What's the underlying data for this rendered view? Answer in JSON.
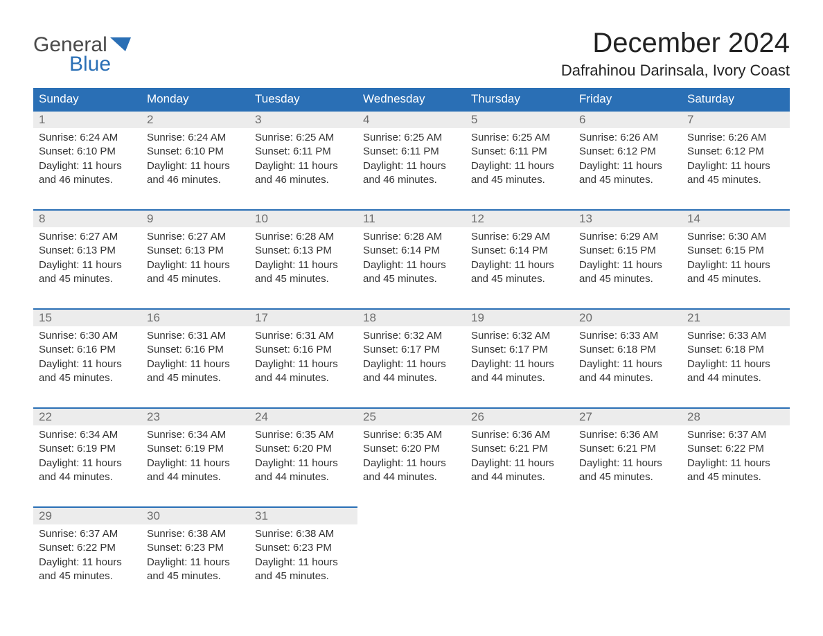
{
  "logo": {
    "word1": "General",
    "word2": "Blue"
  },
  "title": "December 2024",
  "location": "Dafrahinou Darinsala, Ivory Coast",
  "colors": {
    "header_bg": "#2a6fb5",
    "header_text": "#ffffff",
    "daynum_bg": "#ececec",
    "daynum_text": "#6b6b6b",
    "body_text": "#333333",
    "rule": "#2a6fb5",
    "logo_blue": "#2a6fb5",
    "logo_gray": "#4a4a4a",
    "page_bg": "#ffffff"
  },
  "days_of_week": [
    "Sunday",
    "Monday",
    "Tuesday",
    "Wednesday",
    "Thursday",
    "Friday",
    "Saturday"
  ],
  "weeks": [
    [
      {
        "n": "1",
        "sunrise": "Sunrise: 6:24 AM",
        "sunset": "Sunset: 6:10 PM",
        "day1": "Daylight: 11 hours",
        "day2": "and 46 minutes."
      },
      {
        "n": "2",
        "sunrise": "Sunrise: 6:24 AM",
        "sunset": "Sunset: 6:10 PM",
        "day1": "Daylight: 11 hours",
        "day2": "and 46 minutes."
      },
      {
        "n": "3",
        "sunrise": "Sunrise: 6:25 AM",
        "sunset": "Sunset: 6:11 PM",
        "day1": "Daylight: 11 hours",
        "day2": "and 46 minutes."
      },
      {
        "n": "4",
        "sunrise": "Sunrise: 6:25 AM",
        "sunset": "Sunset: 6:11 PM",
        "day1": "Daylight: 11 hours",
        "day2": "and 46 minutes."
      },
      {
        "n": "5",
        "sunrise": "Sunrise: 6:25 AM",
        "sunset": "Sunset: 6:11 PM",
        "day1": "Daylight: 11 hours",
        "day2": "and 45 minutes."
      },
      {
        "n": "6",
        "sunrise": "Sunrise: 6:26 AM",
        "sunset": "Sunset: 6:12 PM",
        "day1": "Daylight: 11 hours",
        "day2": "and 45 minutes."
      },
      {
        "n": "7",
        "sunrise": "Sunrise: 6:26 AM",
        "sunset": "Sunset: 6:12 PM",
        "day1": "Daylight: 11 hours",
        "day2": "and 45 minutes."
      }
    ],
    [
      {
        "n": "8",
        "sunrise": "Sunrise: 6:27 AM",
        "sunset": "Sunset: 6:13 PM",
        "day1": "Daylight: 11 hours",
        "day2": "and 45 minutes."
      },
      {
        "n": "9",
        "sunrise": "Sunrise: 6:27 AM",
        "sunset": "Sunset: 6:13 PM",
        "day1": "Daylight: 11 hours",
        "day2": "and 45 minutes."
      },
      {
        "n": "10",
        "sunrise": "Sunrise: 6:28 AM",
        "sunset": "Sunset: 6:13 PM",
        "day1": "Daylight: 11 hours",
        "day2": "and 45 minutes."
      },
      {
        "n": "11",
        "sunrise": "Sunrise: 6:28 AM",
        "sunset": "Sunset: 6:14 PM",
        "day1": "Daylight: 11 hours",
        "day2": "and 45 minutes."
      },
      {
        "n": "12",
        "sunrise": "Sunrise: 6:29 AM",
        "sunset": "Sunset: 6:14 PM",
        "day1": "Daylight: 11 hours",
        "day2": "and 45 minutes."
      },
      {
        "n": "13",
        "sunrise": "Sunrise: 6:29 AM",
        "sunset": "Sunset: 6:15 PM",
        "day1": "Daylight: 11 hours",
        "day2": "and 45 minutes."
      },
      {
        "n": "14",
        "sunrise": "Sunrise: 6:30 AM",
        "sunset": "Sunset: 6:15 PM",
        "day1": "Daylight: 11 hours",
        "day2": "and 45 minutes."
      }
    ],
    [
      {
        "n": "15",
        "sunrise": "Sunrise: 6:30 AM",
        "sunset": "Sunset: 6:16 PM",
        "day1": "Daylight: 11 hours",
        "day2": "and 45 minutes."
      },
      {
        "n": "16",
        "sunrise": "Sunrise: 6:31 AM",
        "sunset": "Sunset: 6:16 PM",
        "day1": "Daylight: 11 hours",
        "day2": "and 45 minutes."
      },
      {
        "n": "17",
        "sunrise": "Sunrise: 6:31 AM",
        "sunset": "Sunset: 6:16 PM",
        "day1": "Daylight: 11 hours",
        "day2": "and 44 minutes."
      },
      {
        "n": "18",
        "sunrise": "Sunrise: 6:32 AM",
        "sunset": "Sunset: 6:17 PM",
        "day1": "Daylight: 11 hours",
        "day2": "and 44 minutes."
      },
      {
        "n": "19",
        "sunrise": "Sunrise: 6:32 AM",
        "sunset": "Sunset: 6:17 PM",
        "day1": "Daylight: 11 hours",
        "day2": "and 44 minutes."
      },
      {
        "n": "20",
        "sunrise": "Sunrise: 6:33 AM",
        "sunset": "Sunset: 6:18 PM",
        "day1": "Daylight: 11 hours",
        "day2": "and 44 minutes."
      },
      {
        "n": "21",
        "sunrise": "Sunrise: 6:33 AM",
        "sunset": "Sunset: 6:18 PM",
        "day1": "Daylight: 11 hours",
        "day2": "and 44 minutes."
      }
    ],
    [
      {
        "n": "22",
        "sunrise": "Sunrise: 6:34 AM",
        "sunset": "Sunset: 6:19 PM",
        "day1": "Daylight: 11 hours",
        "day2": "and 44 minutes."
      },
      {
        "n": "23",
        "sunrise": "Sunrise: 6:34 AM",
        "sunset": "Sunset: 6:19 PM",
        "day1": "Daylight: 11 hours",
        "day2": "and 44 minutes."
      },
      {
        "n": "24",
        "sunrise": "Sunrise: 6:35 AM",
        "sunset": "Sunset: 6:20 PM",
        "day1": "Daylight: 11 hours",
        "day2": "and 44 minutes."
      },
      {
        "n": "25",
        "sunrise": "Sunrise: 6:35 AM",
        "sunset": "Sunset: 6:20 PM",
        "day1": "Daylight: 11 hours",
        "day2": "and 44 minutes."
      },
      {
        "n": "26",
        "sunrise": "Sunrise: 6:36 AM",
        "sunset": "Sunset: 6:21 PM",
        "day1": "Daylight: 11 hours",
        "day2": "and 44 minutes."
      },
      {
        "n": "27",
        "sunrise": "Sunrise: 6:36 AM",
        "sunset": "Sunset: 6:21 PM",
        "day1": "Daylight: 11 hours",
        "day2": "and 45 minutes."
      },
      {
        "n": "28",
        "sunrise": "Sunrise: 6:37 AM",
        "sunset": "Sunset: 6:22 PM",
        "day1": "Daylight: 11 hours",
        "day2": "and 45 minutes."
      }
    ],
    [
      {
        "n": "29",
        "sunrise": "Sunrise: 6:37 AM",
        "sunset": "Sunset: 6:22 PM",
        "day1": "Daylight: 11 hours",
        "day2": "and 45 minutes."
      },
      {
        "n": "30",
        "sunrise": "Sunrise: 6:38 AM",
        "sunset": "Sunset: 6:23 PM",
        "day1": "Daylight: 11 hours",
        "day2": "and 45 minutes."
      },
      {
        "n": "31",
        "sunrise": "Sunrise: 6:38 AM",
        "sunset": "Sunset: 6:23 PM",
        "day1": "Daylight: 11 hours",
        "day2": "and 45 minutes."
      },
      {
        "empty": true
      },
      {
        "empty": true
      },
      {
        "empty": true
      },
      {
        "empty": true
      }
    ]
  ]
}
